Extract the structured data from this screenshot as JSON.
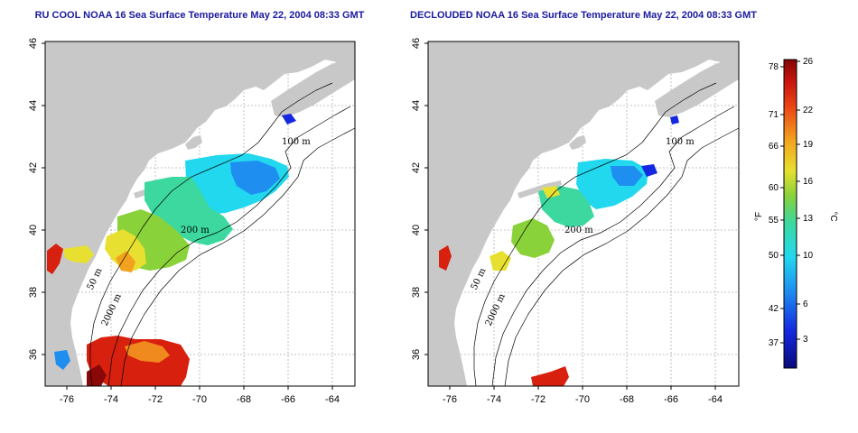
{
  "left_map": {
    "title": "RU COOL NOAA 16 Sea Surface Temperature May 22, 2004 08:33 GMT"
  },
  "right_map": {
    "title": "DECLOUDED NOAA 16 Sea Surface Temperature May 22, 2004 08:33 GMT"
  },
  "axes": {
    "lon_ticks": [
      "-76",
      "-74",
      "-72",
      "-70",
      "-68",
      "-66",
      "-64"
    ],
    "lat_ticks": [
      "46",
      "44",
      "42",
      "40",
      "38",
      "36"
    ]
  },
  "isobaths": {
    "label_100": "100 m",
    "label_50": "50 m",
    "label_200": "200 m",
    "label_2000": "2000 m"
  },
  "colorbar": {
    "fahrenheit_ticks": [
      "78",
      "71",
      "66",
      "60",
      "55",
      "50",
      "42",
      "37"
    ],
    "celsius_ticks": [
      "26",
      "22",
      "19",
      "16",
      "13",
      "10",
      "6",
      "3"
    ],
    "unit_f": "°F",
    "unit_c": "°C"
  },
  "colors": {
    "land": "#c8c8c8",
    "ocean": "#ffffff",
    "title": "#1a1a9e",
    "grid": "#b0b0b0",
    "sst_cold": "#0a1ea0",
    "sst_cyan": "#22d8ee",
    "sst_green": "#6ad26a",
    "sst_yellow": "#e8e030",
    "sst_orange": "#f08a1e",
    "sst_red": "#d8200e",
    "sst_dark_red": "#8a0808"
  }
}
